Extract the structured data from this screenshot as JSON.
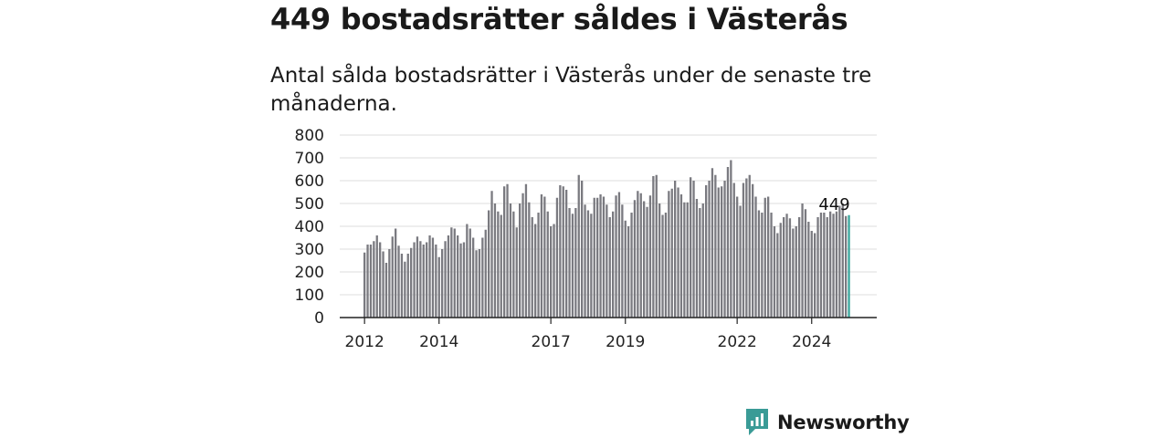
{
  "title": "449 bostadsrätter såldes i Västerås",
  "subtitle": "Antal sålda bostadsrätter i Västerås under de senaste tre månaderna.",
  "brand": {
    "name": "Newsworthy",
    "color": "#3a9b96",
    "icon": "bar-chart-speech-bubble-icon"
  },
  "colors": {
    "bar": "#7a7a80",
    "highlight": "#3aa69c",
    "grid": "#dddddd",
    "axis": "#222222"
  },
  "chart_data": {
    "type": "bar",
    "ylim": [
      0,
      800
    ],
    "yticks": [
      0,
      100,
      200,
      300,
      400,
      500,
      600,
      700,
      800
    ],
    "xticks": [
      "2012",
      "2014",
      "2017",
      "2019",
      "2022",
      "2024"
    ],
    "x_start": "2012-01",
    "x_end": "2025-01",
    "grid": true,
    "annotation": {
      "label": "449",
      "index": 156
    },
    "values": [
      285,
      320,
      320,
      335,
      360,
      330,
      290,
      240,
      300,
      355,
      390,
      315,
      280,
      245,
      280,
      305,
      330,
      355,
      335,
      320,
      330,
      360,
      350,
      320,
      265,
      300,
      335,
      360,
      395,
      390,
      360,
      325,
      330,
      410,
      390,
      350,
      295,
      300,
      350,
      385,
      470,
      555,
      500,
      465,
      450,
      575,
      585,
      500,
      465,
      395,
      500,
      545,
      585,
      505,
      440,
      410,
      460,
      540,
      530,
      465,
      400,
      410,
      525,
      580,
      575,
      560,
      480,
      455,
      480,
      625,
      600,
      495,
      470,
      455,
      525,
      525,
      540,
      530,
      495,
      440,
      465,
      535,
      550,
      495,
      425,
      400,
      460,
      515,
      555,
      545,
      510,
      485,
      535,
      620,
      625,
      500,
      450,
      460,
      555,
      565,
      600,
      570,
      540,
      505,
      505,
      615,
      600,
      520,
      480,
      500,
      580,
      600,
      655,
      625,
      570,
      575,
      600,
      660,
      690,
      590,
      530,
      490,
      590,
      610,
      625,
      585,
      530,
      470,
      460,
      525,
      530,
      460,
      400,
      370,
      415,
      440,
      455,
      435,
      390,
      400,
      440,
      500,
      475,
      420,
      380,
      370,
      440,
      460,
      460,
      440,
      465,
      455,
      465,
      490,
      500,
      445,
      449
    ]
  }
}
